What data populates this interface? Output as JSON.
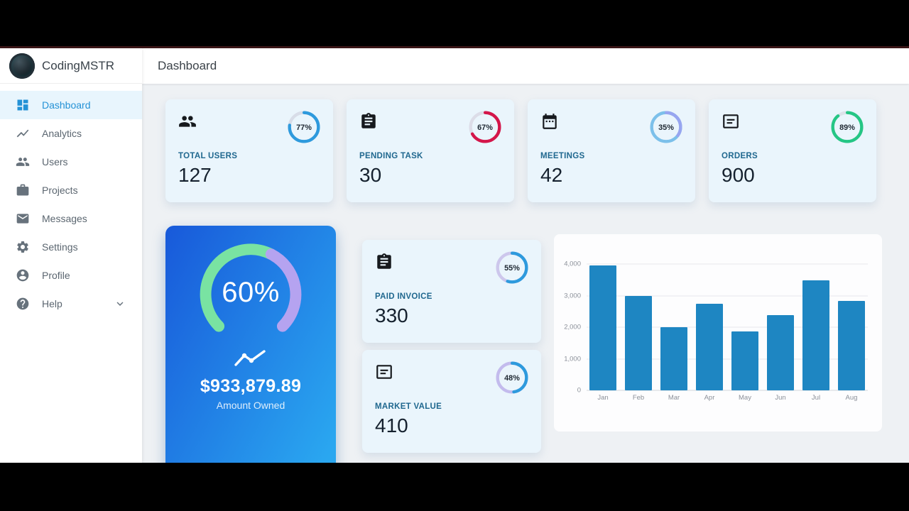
{
  "brand": {
    "name": "CodingMSTR"
  },
  "topbar": {
    "title": "Dashboard"
  },
  "sidebar": {
    "items": [
      {
        "label": "Dashboard",
        "icon": "dashboard-icon",
        "active": true
      },
      {
        "label": "Analytics",
        "icon": "analytics-icon",
        "active": false
      },
      {
        "label": "Users",
        "icon": "users-icon",
        "active": false
      },
      {
        "label": "Projects",
        "icon": "briefcase-icon",
        "active": false
      },
      {
        "label": "Messages",
        "icon": "mail-icon",
        "active": false
      },
      {
        "label": "Settings",
        "icon": "gear-icon",
        "active": false
      },
      {
        "label": "Profile",
        "icon": "person-icon",
        "active": false
      },
      {
        "label": "Help",
        "icon": "help-icon",
        "active": false,
        "has_submenu": true
      }
    ],
    "active_color": "#2492d6"
  },
  "stat_cards": [
    {
      "label": "TOTAL USERS",
      "value": "127",
      "percent": 77,
      "ring_color": "#2e9add",
      "track_color": "#d8dde8",
      "icon": "people-icon"
    },
    {
      "label": "PENDING TASK",
      "value": "30",
      "percent": 67,
      "ring_color": "#d4164a",
      "track_color": "#dcdde8",
      "icon": "clipboard-icon"
    },
    {
      "label": "MEETINGS",
      "value": "42",
      "percent": 35,
      "ring_color": "#97a5f0",
      "track_color": "#7cc0ea",
      "icon": "calendar-icon"
    },
    {
      "label": "ORDERS",
      "value": "900",
      "percent": 89,
      "ring_color": "#25c685",
      "track_color": "#dce2ea",
      "icon": "card-lines-icon"
    }
  ],
  "gauge_card": {
    "percent": 60,
    "percent_label": "60%",
    "amount": "$933,879.89",
    "caption": "Amount Owned",
    "value_color": "#79e3a2",
    "rest_color": "#b5a3f0",
    "gradient_from": "#1859da",
    "gradient_to": "#2aa7f0",
    "arc_start_deg": 135,
    "arc_sweep_deg": 270
  },
  "mini_cards": [
    {
      "label": "PAID INVOICE",
      "value": "330",
      "percent": 55,
      "ring_color": "#2e9add",
      "track_color": "#cdc7ec",
      "icon": "clipboard-icon"
    },
    {
      "label": "MARKET VALUE",
      "value": "410",
      "percent": 48,
      "ring_color": "#2e9add",
      "track_color": "#c3bbed",
      "icon": "card-lines-icon"
    }
  ],
  "chart_data": {
    "type": "bar",
    "title": "",
    "categories": [
      "Jan",
      "Feb",
      "Mar",
      "Apr",
      "May",
      "Jun",
      "Jul",
      "Aug"
    ],
    "values": [
      3950,
      3000,
      2000,
      2750,
      1870,
      2380,
      3480,
      2840
    ],
    "ylim": [
      0,
      4000
    ],
    "yticks": [
      "4,000",
      "3,000",
      "2,000",
      "1,000",
      "0"
    ],
    "bar_color": "#1e86c2",
    "grid": true,
    "legend": false,
    "xlabel": "",
    "ylabel": ""
  }
}
